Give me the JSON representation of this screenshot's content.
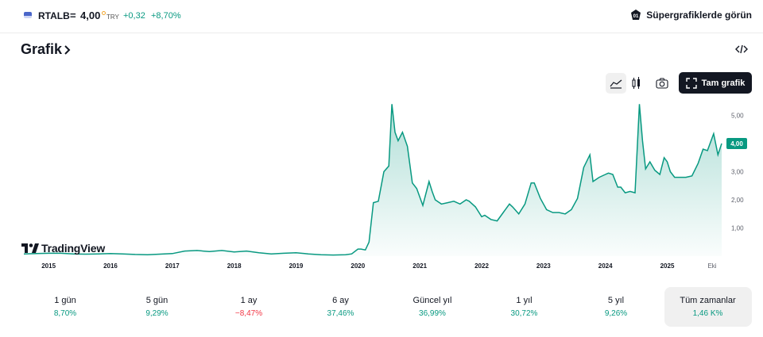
{
  "header": {
    "symbol": "RTALB",
    "eq": "=",
    "price": "4,00",
    "currency": "TRY",
    "change_abs": "+0,32",
    "change_pct": "+8,70%",
    "supercharts_label": "Süpergrafiklerde görün"
  },
  "section": {
    "title": "Grafik"
  },
  "toolbar": {
    "fullscreen_label": "Tam grafik",
    "icons": [
      "area-chart-icon",
      "candles-icon",
      "camera-icon",
      "fullscreen-icon",
      "embed-code-icon"
    ]
  },
  "branding": {
    "logo_text": "TradingView"
  },
  "colors": {
    "accent": "#089981",
    "negative": "#f23645",
    "dark": "#131722"
  },
  "chart_data": {
    "type": "area",
    "x_ticks": [
      "2015",
      "2016",
      "2017",
      "2018",
      "2019",
      "2020",
      "2021",
      "2022",
      "2023",
      "2024",
      "2025",
      "Eki"
    ],
    "y_ticks": [
      "1,00",
      "2,00",
      "3,00",
      "4,00",
      "5,00"
    ],
    "ylim": [
      0,
      5.5
    ],
    "xlim": [
      2014.6,
      2025.88
    ],
    "last_value_label": "4,00",
    "series": [
      {
        "x": [
          2014.6,
          2014.8,
          2015.0,
          2015.2,
          2015.4,
          2015.6,
          2015.8,
          2016.0,
          2016.2,
          2016.4,
          2016.6,
          2016.8,
          2017.0,
          2017.2,
          2017.4,
          2017.6,
          2017.8,
          2018.0,
          2018.2,
          2018.4,
          2018.6,
          2018.8,
          2019.0,
          2019.2,
          2019.4,
          2019.6,
          2019.8,
          2019.9,
          2020.0,
          2020.05,
          2020.12,
          2020.18,
          2020.25,
          2020.33,
          2020.42,
          2020.5,
          2020.55,
          2020.6,
          2020.65,
          2020.72,
          2020.8,
          2020.88,
          2020.95,
          2021.05,
          2021.15,
          2021.2,
          2021.25,
          2021.35,
          2021.45,
          2021.55,
          2021.65,
          2021.75,
          2021.8,
          2021.9,
          2022.0,
          2022.05,
          2022.15,
          2022.25,
          2022.35,
          2022.45,
          2022.5,
          2022.6,
          2022.7,
          2022.8,
          2022.85,
          2022.95,
          2023.0,
          2023.05,
          2023.15,
          2023.25,
          2023.35,
          2023.45,
          2023.55,
          2023.65,
          2023.75,
          2023.8,
          2023.9,
          2024.0,
          2024.05,
          2024.12,
          2024.2,
          2024.25,
          2024.32,
          2024.4,
          2024.48,
          2024.55,
          2024.6,
          2024.65,
          2024.72,
          2024.8,
          2024.88,
          2024.95,
          2025.0,
          2025.05,
          2025.12,
          2025.2,
          2025.3,
          2025.4,
          2025.5,
          2025.58,
          2025.65,
          2025.75,
          2025.82,
          2025.88
        ],
        "y": [
          0.08,
          0.09,
          0.1,
          0.1,
          0.08,
          0.07,
          0.08,
          0.09,
          0.08,
          0.06,
          0.05,
          0.07,
          0.09,
          0.18,
          0.2,
          0.16,
          0.2,
          0.15,
          0.18,
          0.12,
          0.08,
          0.1,
          0.12,
          0.08,
          0.05,
          0.04,
          0.05,
          0.08,
          0.25,
          0.25,
          0.22,
          0.5,
          1.9,
          1.95,
          3.0,
          3.2,
          5.4,
          4.4,
          4.1,
          4.4,
          3.9,
          2.6,
          2.4,
          1.8,
          2.65,
          2.3,
          2.0,
          1.85,
          1.9,
          1.95,
          1.85,
          2.0,
          1.95,
          1.75,
          1.4,
          1.45,
          1.3,
          1.25,
          1.55,
          1.85,
          1.75,
          1.5,
          1.85,
          2.6,
          2.6,
          2.05,
          1.85,
          1.65,
          1.55,
          1.55,
          1.5,
          1.65,
          2.05,
          3.15,
          3.6,
          2.65,
          2.8,
          2.9,
          2.95,
          2.9,
          2.45,
          2.45,
          2.25,
          2.3,
          2.25,
          5.4,
          4.1,
          3.1,
          3.35,
          3.05,
          2.9,
          3.5,
          3.35,
          3.0,
          2.8,
          2.8,
          2.8,
          2.85,
          3.3,
          3.8,
          3.75,
          4.35,
          3.6,
          4.0
        ]
      }
    ]
  },
  "periods": [
    {
      "label": "1 gün",
      "value": "8,70%",
      "trend": "up"
    },
    {
      "label": "5 gün",
      "value": "9,29%",
      "trend": "up"
    },
    {
      "label": "1 ay",
      "value": "−8,47%",
      "trend": "down"
    },
    {
      "label": "6 ay",
      "value": "37,46%",
      "trend": "up"
    },
    {
      "label": "Güncel yıl",
      "value": "36,99%",
      "trend": "up"
    },
    {
      "label": "1 yıl",
      "value": "30,72%",
      "trend": "up"
    },
    {
      "label": "5 yıl",
      "value": "9,26%",
      "trend": "up"
    },
    {
      "label": "Tüm zamanlar",
      "value": "1,46 K%",
      "trend": "up",
      "selected": true
    }
  ]
}
